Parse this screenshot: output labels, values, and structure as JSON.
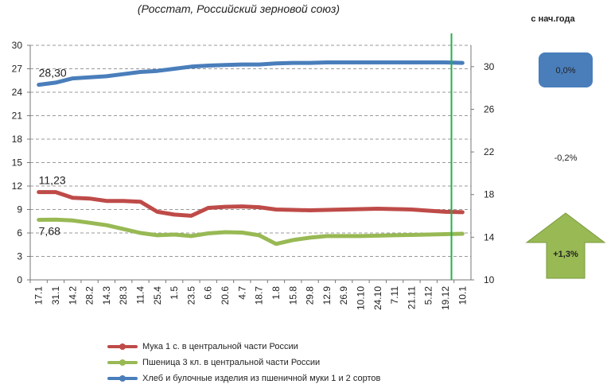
{
  "header": {
    "subtitle": "(Росстат, Российский зерновой союз)",
    "since_label": "с нач.года"
  },
  "badges": {
    "bread": "0,0%",
    "flour": "-0,2%",
    "wheat": "+1,3%"
  },
  "colors": {
    "bread": "#4a7ebb",
    "flour": "#be4b48",
    "wheat": "#98b954",
    "marker": "#22b14c",
    "badge_blue": "#4a7ebb",
    "badge_green": "#98b954",
    "grid": "#999999"
  },
  "chart_data": {
    "type": "line",
    "categories": [
      "17.1",
      "31.1",
      "14.2",
      "28.2",
      "14.3",
      "28.3",
      "11.4",
      "25.4",
      "1.5",
      "23.5",
      "6.6",
      "20.6",
      "4.7",
      "18.7",
      "1.8",
      "15.8",
      "29.8",
      "12.9",
      "26.9",
      "10.10",
      "24.10",
      "7.11",
      "21.11",
      "5.12",
      "19.12",
      "10.1"
    ],
    "left_axis": {
      "ylim": [
        0,
        30
      ],
      "ticks": [
        "0",
        "3",
        "6",
        "9",
        "12",
        "15",
        "18",
        "21",
        "24",
        "27",
        "30"
      ]
    },
    "right_axis": {
      "ylim": [
        10,
        32
      ],
      "ticks": [
        "10",
        "14",
        "18",
        "22",
        "26",
        "30"
      ]
    },
    "grid": true,
    "legend_position": "bottom",
    "series": [
      {
        "name": "Мука 1 с. в центральной части России",
        "axis": "left",
        "color_key": "flour",
        "start_label": "11,23",
        "values": [
          11.23,
          11.23,
          10.5,
          10.4,
          10.1,
          10.1,
          10.0,
          8.7,
          8.35,
          8.2,
          9.2,
          9.35,
          9.4,
          9.3,
          9.0,
          8.95,
          8.9,
          8.95,
          9.0,
          9.05,
          9.1,
          9.05,
          9.0,
          8.85,
          8.7,
          8.65
        ]
      },
      {
        "name": "Пшеница 3 кл. в центральной части России",
        "axis": "left",
        "color_key": "wheat",
        "start_label": "7,68",
        "values": [
          7.68,
          7.7,
          7.6,
          7.3,
          7.0,
          6.5,
          6.0,
          5.7,
          5.8,
          5.6,
          5.95,
          6.1,
          6.05,
          5.7,
          4.6,
          5.1,
          5.4,
          5.6,
          5.6,
          5.6,
          5.65,
          5.7,
          5.75,
          5.8,
          5.85,
          5.9
        ]
      },
      {
        "name": "Хлеб и булочные изделия из пшеничной муки 1 и 2 сортов",
        "axis": "right",
        "color_key": "bread",
        "start_label": "28,30",
        "values": [
          28.3,
          28.5,
          28.9,
          29.0,
          29.1,
          29.3,
          29.5,
          29.6,
          29.8,
          30.0,
          30.1,
          30.15,
          30.2,
          30.2,
          30.3,
          30.35,
          30.35,
          30.4,
          30.4,
          30.4,
          30.4,
          30.4,
          30.4,
          30.4,
          30.4,
          30.35
        ]
      }
    ]
  }
}
